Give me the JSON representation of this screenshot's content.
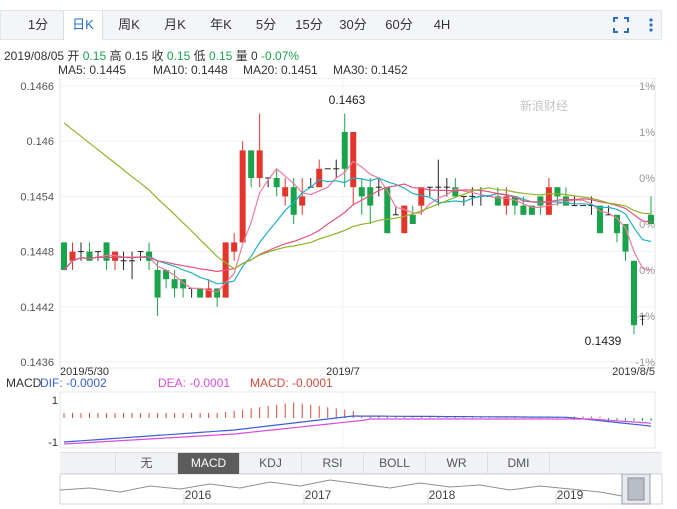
{
  "tabs": [
    {
      "label": "1分",
      "active": false
    },
    {
      "label": "日K",
      "active": true
    },
    {
      "label": "周K",
      "active": false
    },
    {
      "label": "月K",
      "active": false
    },
    {
      "label": "年K",
      "active": false
    },
    {
      "label": "5分",
      "active": false
    },
    {
      "label": "15分",
      "active": false
    },
    {
      "label": "30分",
      "active": false
    },
    {
      "label": "60分",
      "active": false
    },
    {
      "label": "4H",
      "active": false
    }
  ],
  "toolbar_icons": [
    "fullscreen-icon",
    "more-icon"
  ],
  "info": {
    "date": "2019/08/05",
    "open_label": "开",
    "open": "0.15",
    "high_label": "高",
    "high": "0.15",
    "close_label": "收",
    "close": "0.15",
    "low_label": "低",
    "low": "0.15",
    "vol_label": "量",
    "vol": "0",
    "change": "-0.07%"
  },
  "ma": [
    {
      "label": "MA5: 0.1445",
      "color": "#f07c9c"
    },
    {
      "label": "MA10: 0.1448",
      "color": "#21b0c6"
    },
    {
      "label": "MA20: 0.1451",
      "color": "#e8527a"
    },
    {
      "label": "MA30: 0.1452",
      "color": "#8fb42a"
    }
  ],
  "watermark": "新浪财经",
  "chart_data": {
    "type": "candlestick",
    "price_axis": [
      "0.1466",
      "0.146",
      "0.1454",
      "0.1448",
      "0.1442",
      "0.1436"
    ],
    "pct_axis": [
      "1%",
      "1%",
      "0%",
      "0%",
      "0%",
      "-1%",
      "-1%"
    ],
    "x_labels": [
      "2019/5/30",
      "2019/7",
      "2019/8/5"
    ],
    "high_annotation": "0.1463",
    "low_annotation": "0.1439",
    "candles": [
      [
        0.1449,
        0.1446,
        0.1449,
        0.1446
      ],
      [
        0.1447,
        0.1448,
        0.1449,
        0.1446
      ],
      [
        0.1448,
        0.1448,
        0.1449,
        0.1447
      ],
      [
        0.1448,
        0.1447,
        0.1449,
        0.1447
      ],
      [
        0.1448,
        0.1448,
        0.1448,
        0.1447
      ],
      [
        0.1449,
        0.1447,
        0.1449,
        0.1446
      ],
      [
        0.1447,
        0.1448,
        0.1448,
        0.1446
      ],
      [
        0.1447,
        0.1447,
        0.1448,
        0.1446
      ],
      [
        0.1447,
        0.1447,
        0.1448,
        0.1445
      ],
      [
        0.1448,
        0.1448,
        0.1448,
        0.1447
      ],
      [
        0.1448,
        0.1447,
        0.1449,
        0.1446
      ],
      [
        0.1446,
        0.1443,
        0.1447,
        0.1441
      ],
      [
        0.1446,
        0.1445,
        0.1446,
        0.1444
      ],
      [
        0.1445,
        0.1444,
        0.1446,
        0.1443
      ],
      [
        0.1445,
        0.1444,
        0.1445,
        0.1443
      ],
      [
        0.1444,
        0.1444,
        0.1444,
        0.1443
      ],
      [
        0.1444,
        0.1443,
        0.1444,
        0.1443
      ],
      [
        0.1443,
        0.1444,
        0.1445,
        0.1443
      ],
      [
        0.1444,
        0.1443,
        0.1444,
        0.1442
      ],
      [
        0.1443,
        0.1449,
        0.1449,
        0.1443
      ],
      [
        0.1448,
        0.1449,
        0.145,
        0.1447
      ],
      [
        0.1449,
        0.1459,
        0.146,
        0.1449
      ],
      [
        0.1459,
        0.1456,
        0.1459,
        0.1455
      ],
      [
        0.1456,
        0.1459,
        0.1463,
        0.1455
      ],
      [
        0.1456,
        0.1456,
        0.1456,
        0.1455
      ],
      [
        0.1456,
        0.1455,
        0.1457,
        0.1454
      ],
      [
        0.1454,
        0.1455,
        0.1456,
        0.1453
      ],
      [
        0.1455,
        0.1452,
        0.1456,
        0.1451
      ],
      [
        0.1453,
        0.1454,
        0.1456,
        0.1452
      ],
      [
        0.1455,
        0.1455,
        0.1456,
        0.1455
      ],
      [
        0.1455,
        0.1457,
        0.1458,
        0.1455
      ],
      [
        0.1457,
        0.1457,
        0.1457,
        0.1457
      ],
      [
        0.1457,
        0.1457,
        0.1458,
        0.1456
      ],
      [
        0.1461,
        0.1457,
        0.1463,
        0.1455
      ],
      [
        0.1455,
        0.1461,
        0.1461,
        0.1453
      ],
      [
        0.1455,
        0.1454,
        0.1456,
        0.1452
      ],
      [
        0.1455,
        0.1453,
        0.1456,
        0.1451
      ],
      [
        0.1455,
        0.1455,
        0.1456,
        0.1454
      ],
      [
        0.1455,
        0.145,
        0.1455,
        0.145
      ],
      [
        0.1452,
        0.1452,
        0.1453,
        0.1452
      ],
      [
        0.145,
        0.1453,
        0.1453,
        0.145
      ],
      [
        0.1452,
        0.1451,
        0.1453,
        0.1451
      ],
      [
        0.1453,
        0.1455,
        0.1455,
        0.1452
      ],
      [
        0.1455,
        0.1455,
        0.1455,
        0.1454
      ],
      [
        0.1455,
        0.1455,
        0.1458,
        0.1453
      ],
      [
        0.1455,
        0.1455,
        0.1456,
        0.1454
      ],
      [
        0.1455,
        0.1454,
        0.1456,
        0.1454
      ],
      [
        0.1454,
        0.1454,
        0.1454,
        0.1453
      ],
      [
        0.1454,
        0.1454,
        0.1455,
        0.1453
      ],
      [
        0.1454,
        0.1454,
        0.1455,
        0.1453
      ],
      [
        0.1454,
        0.1454,
        0.1454,
        0.1454
      ],
      [
        0.1454,
        0.1453,
        0.1455,
        0.1453
      ],
      [
        0.1453,
        0.1454,
        0.1455,
        0.1452
      ],
      [
        0.1454,
        0.1453,
        0.1454,
        0.1452
      ],
      [
        0.1453,
        0.1452,
        0.1454,
        0.1452
      ],
      [
        0.1453,
        0.1452,
        0.1453,
        0.1452
      ],
      [
        0.1454,
        0.1453,
        0.1454,
        0.1452
      ],
      [
        0.1452,
        0.1455,
        0.1456,
        0.1452
      ],
      [
        0.1455,
        0.1454,
        0.1455,
        0.1453
      ],
      [
        0.1454,
        0.1453,
        0.1455,
        0.1453
      ],
      [
        0.1453,
        0.1453,
        0.1454,
        0.1453
      ],
      [
        0.1453,
        0.1453,
        0.1453,
        0.1453
      ],
      [
        0.1453,
        0.1453,
        0.1454,
        0.1452
      ],
      [
        0.1453,
        0.145,
        0.1453,
        0.145
      ],
      [
        0.1452,
        0.1452,
        0.1453,
        0.1452
      ],
      [
        0.1452,
        0.145,
        0.1452,
        0.1449
      ],
      [
        0.1451,
        0.1448,
        0.1451,
        0.1447
      ],
      [
        0.1447,
        0.144,
        0.1447,
        0.1439
      ],
      [
        0.1441,
        0.1441,
        0.1441,
        0.144
      ],
      [
        0.1452,
        0.1451,
        0.1454,
        0.1451
      ]
    ]
  },
  "macd": {
    "name": "MACD",
    "dif": "DIF: -0.0002",
    "dea": "DEA: -0.0001",
    "macd": "MACD: -0.0001",
    "axis_top": "1",
    "axis_bottom": "-1",
    "dif_color": "#3a5fd6",
    "dea_color": "#d84dd8",
    "macd_color": "#d64a3a"
  },
  "indicator_tabs": [
    {
      "label": "无",
      "active": false
    },
    {
      "label": "MACD",
      "active": true
    },
    {
      "label": "KDJ",
      "active": false
    },
    {
      "label": "RSI",
      "active": false
    },
    {
      "label": "BOLL",
      "active": false
    },
    {
      "label": "WR",
      "active": false
    },
    {
      "label": "DMI",
      "active": false
    }
  ],
  "arrows": [
    "▲",
    "▼"
  ],
  "navigator_years": [
    "2016",
    "2017",
    "2018",
    "2019"
  ]
}
